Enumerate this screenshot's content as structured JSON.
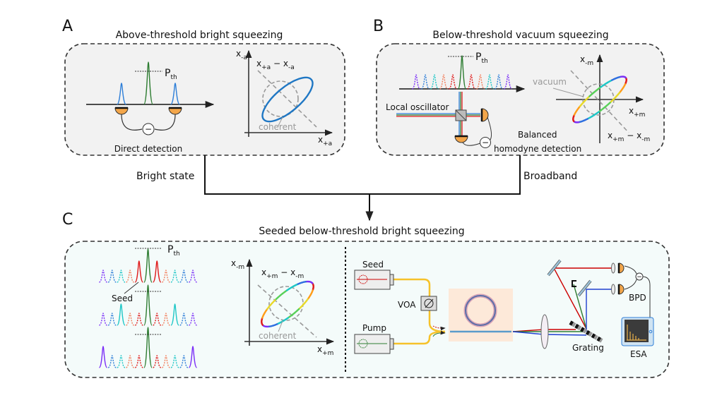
{
  "panel_a": {
    "letter": "A",
    "title": "Above-threshold bright squeezing",
    "threshold": {
      "main": "P",
      "sub": "th"
    },
    "detection_label": "Direct detection",
    "minus": "−",
    "y_axis": {
      "main": "x",
      "sub": "-a"
    },
    "x_axis": {
      "main": "x",
      "sub": "+a"
    },
    "diff": {
      "a": "x",
      "a_sub": "+a",
      "op": " − ",
      "b": "x",
      "b_sub": "-a"
    },
    "reference_label": "coherent"
  },
  "panel_b": {
    "letter": "B",
    "title": "Below-threshold vacuum squeezing",
    "threshold": {
      "main": "P",
      "sub": "th"
    },
    "lo_label": "Local oscillator",
    "detection_label_1": "Balanced",
    "detection_label_2": "homodyne detection",
    "minus": "−",
    "y_axis": {
      "main": "x",
      "sub": "-m"
    },
    "x_axis": {
      "main": "x",
      "sub": "+m"
    },
    "diff": {
      "a": "x",
      "a_sub": "+m",
      "op": " − ",
      "b": "x",
      "b_sub": "-m"
    },
    "reference_label": "vacuum"
  },
  "connector": {
    "left_label": "Bright state",
    "right_label": "Broadband"
  },
  "panel_c": {
    "letter": "C",
    "title": "Seeded below-threshold bright squeezing",
    "threshold": {
      "main": "P",
      "sub": "th"
    },
    "seed_label": "Seed",
    "y_axis": {
      "main": "x",
      "sub": "-m"
    },
    "x_axis": {
      "main": "x",
      "sub": "+m"
    },
    "diff": {
      "a": "x",
      "a_sub": "+m",
      "op": " − ",
      "b": "x",
      "b_sub": "-m"
    },
    "reference_label": "coherent",
    "setup": {
      "seed_laser": "Seed",
      "pump_laser": "Pump",
      "attenuator": "VOA",
      "grating": "Grating",
      "detector": "BPD",
      "analyzer": "ESA",
      "minus": "−"
    }
  },
  "colors": {
    "purple": "#7b2ff7",
    "blue": "#2f7fd8",
    "cyan": "#1fc7c7",
    "salmon": "#f2805e",
    "red": "#e01b1b",
    "green": "#2e7d32",
    "ellipse_blue": "#1f77c4",
    "fiber": "#f6c22a",
    "detector": "#f3a64a",
    "panel_ab_bg": "#f2f2f2",
    "panel_c_bg": "#f4fbfa",
    "chip_bg": "#fde9d9",
    "mirror": "#9cc3d9"
  }
}
